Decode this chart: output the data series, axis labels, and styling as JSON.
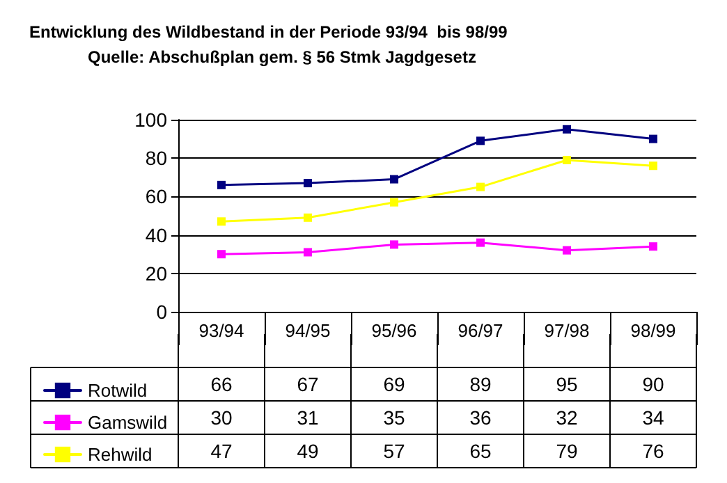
{
  "chart_data": {
    "type": "line",
    "title": "Entwicklung des Wildbestand in der Periode 93/94  bis 98/99",
    "subtitle": "Quelle: Abschußplan gem. § 56 Stmk Jagdgesetz",
    "categories": [
      "93/94",
      "94/95",
      "95/96",
      "96/97",
      "97/98",
      "98/99"
    ],
    "series": [
      {
        "name": "Rotwild",
        "color": "#000080",
        "values": [
          66,
          67,
          69,
          89,
          95,
          90
        ]
      },
      {
        "name": "Gamswild",
        "color": "#ff00ff",
        "values": [
          30,
          31,
          35,
          36,
          32,
          34
        ]
      },
      {
        "name": "Rehwild",
        "color": "#ffff00",
        "values": [
          47,
          49,
          57,
          65,
          79,
          76
        ]
      }
    ],
    "ylim": [
      0,
      100
    ],
    "yticks": [
      0,
      20,
      40,
      60,
      80,
      100
    ],
    "grid": "y",
    "legend": "bottom",
    "marker": "square",
    "line_style": "solid",
    "data_labels": true
  }
}
